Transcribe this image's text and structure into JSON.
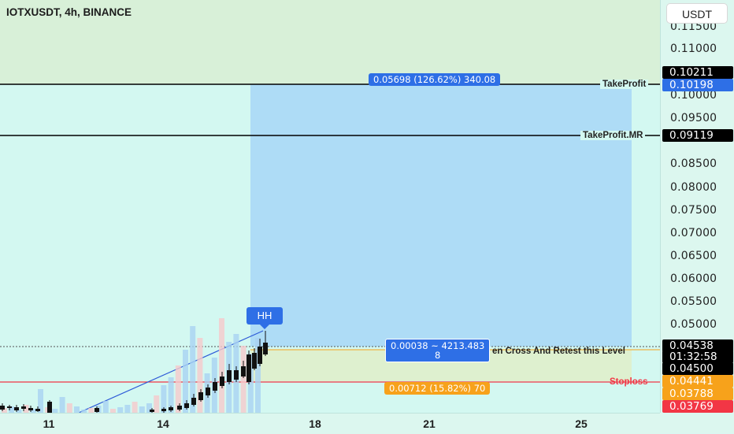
{
  "legend": {
    "symbol_line": "IOTXUSDT, 4h, BINANCE"
  },
  "currency_button": "USDT",
  "price_ticks": [
    "0.11500",
    "0.11000",
    "0.10000",
    "0.09500",
    "0.08500",
    "0.08000",
    "0.07500",
    "0.07000",
    "0.06500",
    "0.06000",
    "0.05500",
    "0.05000"
  ],
  "price_tags": {
    "tp_high": "0.10211",
    "take_profit": "0.10198",
    "take_profit_mr": "0.09119",
    "last_price": "0.04538",
    "countdown": "01:32:58",
    "entry_level": "0.04500",
    "stop_loss": "0.04441",
    "orange_level": "0.03788",
    "red_low": "0.03769"
  },
  "time_ticks": [
    "11",
    "14",
    "18",
    "21",
    "25"
  ],
  "line_labels": {
    "take_profit": "TakeProfit",
    "take_profit_mr": "TakeProfit.MR",
    "entry_note": "en Cross And Retest this Level",
    "stoploss": "Stoploss"
  },
  "position_tool": {
    "target_box": "0.05698 (126.62%) 340.08",
    "mid_box_line1": "0.00038 ~ 4213.483",
    "mid_box_line2": "8",
    "stop_box": "0.00712 (15.82%) 70"
  },
  "marker": {
    "label": "HH"
  },
  "colors": {
    "chart_bg": "#d3f8f1",
    "target_zone": "#aedcf6",
    "upper_zone": "#d8f0d8",
    "stop_zone": "#def0cf",
    "stop_line": "#f23645",
    "blue_accent": "#2e6fe6",
    "orange_accent": "#f7a21b",
    "dark_tag": "#000000"
  }
}
